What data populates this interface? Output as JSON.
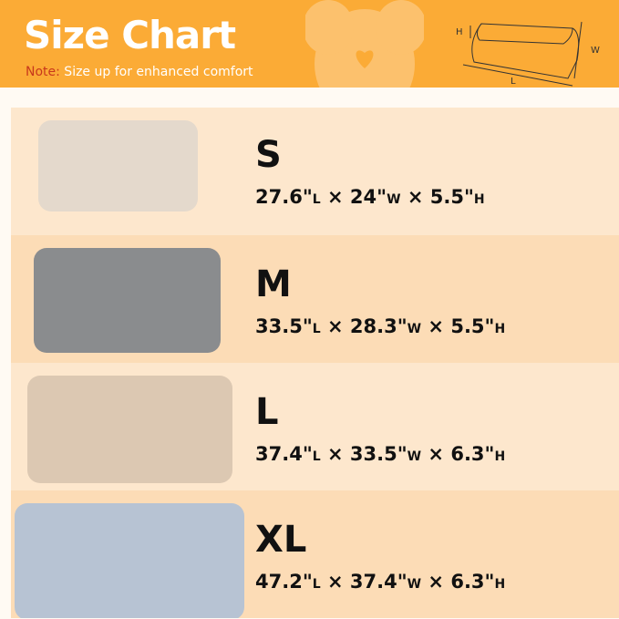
{
  "header": {
    "title": "Size Chart",
    "note_label": "Note:",
    "note_text": " Size up for enhanced comfort",
    "diagram_labels": {
      "h": "H",
      "w": "W",
      "l": "L"
    }
  },
  "colors": {
    "header": "#fbab36",
    "note_label": "#c8381c",
    "row_light": "#fde7cd",
    "row_dark": "#fcdcb6"
  },
  "sizes": [
    {
      "size": "S",
      "l": "27.6\"",
      "w": "24\"",
      "h": "5.5\""
    },
    {
      "size": "M",
      "l": "33.5\"",
      "w": "28.3\"",
      "h": "5.5\""
    },
    {
      "size": "L",
      "l": "37.4\"",
      "w": "33.5\"",
      "h": "6.3\""
    },
    {
      "size": "XL",
      "l": "47.2\"",
      "w": "37.4\"",
      "h": "6.3\""
    }
  ],
  "units": {
    "l": "L",
    "w": "W",
    "h": "H",
    "sep": " × "
  }
}
